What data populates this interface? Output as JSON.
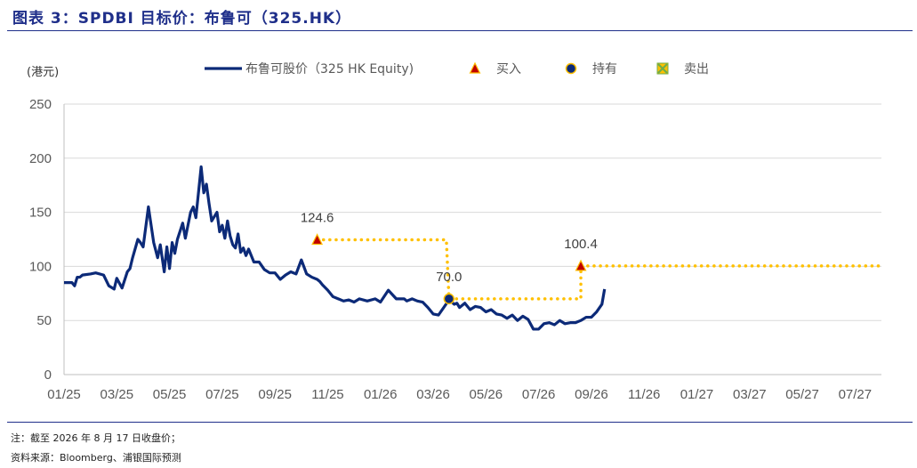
{
  "header": {
    "title": "图表 3：SPDBI 目标价：布鲁可（325.HK）"
  },
  "footer": {
    "note": "注：截至 2026 年 8 月 17 日收盘价；",
    "source": "资料来源：Bloomberg、浦银国际预测"
  },
  "colors": {
    "title": "#1f2f8a",
    "price_line": "#0c2a78",
    "target_line": "#ffc000",
    "buy_marker": "#c00000",
    "hold_marker": "#0c2a78",
    "sell_marker": "#70ad47",
    "grid": "#d9d9d9"
  },
  "chart_data": {
    "type": "line",
    "ylabel": "(港元)",
    "ylim": [
      0,
      250
    ],
    "yticks": [
      0,
      50,
      100,
      150,
      200,
      250
    ],
    "grid": true,
    "legend_position": "top",
    "legend": [
      {
        "label": "布鲁可股价（325 HK Equity)",
        "kind": "line",
        "icon": "line-icon"
      },
      {
        "label": "买入",
        "kind": "marker",
        "icon": "triangle-icon"
      },
      {
        "label": "持有",
        "kind": "marker",
        "icon": "circle-icon"
      },
      {
        "label": "卖出",
        "kind": "marker",
        "icon": "square-x-icon"
      }
    ],
    "x_tick_labels": [
      "01/25",
      "03/25",
      "05/25",
      "07/25",
      "09/25",
      "11/25",
      "01/26",
      "03/26",
      "05/26",
      "07/26",
      "09/26",
      "11/26",
      "01/27",
      "03/27",
      "05/27",
      "07/27"
    ],
    "x_range_months": [
      0,
      31
    ],
    "series": [
      {
        "name": "布鲁可股价（325 HK Equity)",
        "x": [
          0,
          0.3,
          0.4,
          0.5,
          0.6,
          0.7,
          1.0,
          1.2,
          1.5,
          1.7,
          1.9,
          2.0,
          2.2,
          2.4,
          2.5,
          2.6,
          2.8,
          2.9,
          3.0,
          3.2,
          3.4,
          3.55,
          3.65,
          3.8,
          3.9,
          4.0,
          4.1,
          4.2,
          4.3,
          4.5,
          4.6,
          4.8,
          4.9,
          5.0,
          5.2,
          5.3,
          5.4,
          5.5,
          5.6,
          5.8,
          5.9,
          6.0,
          6.1,
          6.2,
          6.3,
          6.4,
          6.5,
          6.6,
          6.7,
          6.8,
          6.9,
          7.0,
          7.2,
          7.4,
          7.6,
          7.8,
          8.0,
          8.2,
          8.4,
          8.6,
          8.8,
          9.0,
          9.2,
          9.4,
          9.6,
          9.7,
          9.8,
          10.0,
          10.2,
          10.4,
          10.6,
          10.8,
          11.0,
          11.2,
          11.5,
          11.8,
          12.0,
          12.3,
          12.6,
          12.9,
          13.0,
          13.2,
          13.4,
          13.6,
          13.8,
          14.0,
          14.2,
          14.4,
          14.6,
          14.8,
          14.9,
          15.0,
          15.2,
          15.4,
          15.6,
          15.8,
          16.0,
          16.2,
          16.4,
          16.6,
          16.8,
          17.0,
          17.2,
          17.4,
          17.6,
          17.8,
          18.0,
          18.2,
          18.4,
          18.6,
          18.8,
          19.0,
          19.2,
          19.4,
          19.6,
          19.8,
          20.0,
          20.2,
          20.4,
          20.5
        ],
        "values": [
          85,
          85,
          82,
          90,
          90,
          92,
          93,
          94,
          92,
          82,
          79,
          89,
          80,
          95,
          98,
          108,
          125,
          122,
          118,
          155,
          122,
          108,
          120,
          95,
          118,
          98,
          122,
          112,
          125,
          140,
          126,
          150,
          155,
          145,
          192,
          168,
          176,
          158,
          142,
          150,
          132,
          138,
          126,
          142,
          128,
          120,
          117,
          130,
          113,
          117,
          110,
          116,
          104,
          104,
          97,
          94,
          94,
          88,
          92,
          95,
          93,
          106,
          93,
          90,
          88,
          86,
          83,
          78,
          72,
          70,
          68,
          69,
          67,
          70,
          68,
          70,
          67,
          78,
          70,
          70,
          68,
          70,
          68,
          67,
          62,
          56,
          55,
          62,
          69,
          65,
          66,
          62,
          66,
          60,
          63,
          62,
          58,
          60,
          56,
          55,
          52,
          55,
          50,
          54,
          51,
          42,
          42,
          47,
          48,
          46,
          50,
          47,
          48,
          48,
          50,
          53,
          53,
          58,
          65,
          79
        ]
      }
    ],
    "ratings": [
      {
        "rating": "买入",
        "x": 9.6,
        "target": 124.6,
        "label": "124.6"
      },
      {
        "rating": "持有",
        "x": 14.6,
        "target": 70.0,
        "label": "70.0"
      },
      {
        "rating": "买入",
        "x": 19.6,
        "target": 100.4,
        "label": "100.4"
      }
    ],
    "target_path": {
      "x": [
        9.6,
        14.5,
        14.6,
        19.6,
        19.6,
        31
      ],
      "values": [
        124.6,
        124.6,
        70.0,
        70.0,
        100.4,
        100.4
      ]
    }
  }
}
